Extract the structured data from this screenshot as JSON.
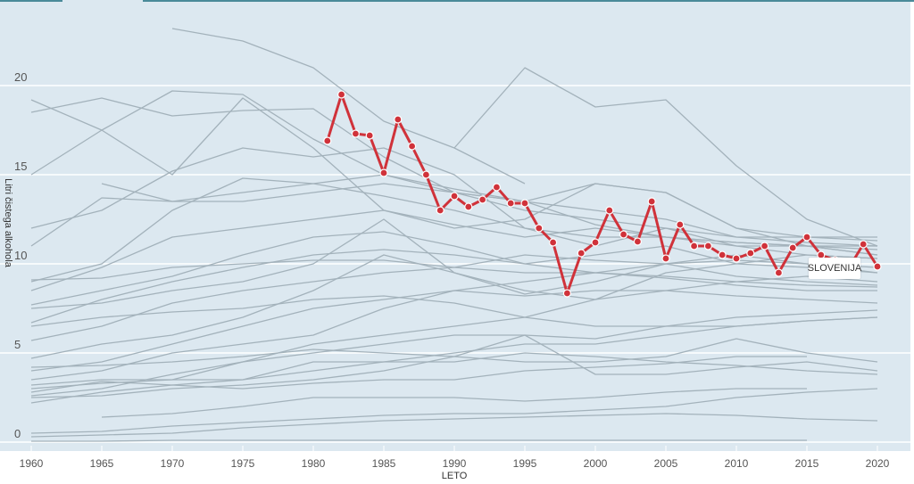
{
  "chart_data": {
    "type": "line",
    "title": "",
    "xlabel": "LETO",
    "ylabel": "Litri čistega alkohola",
    "xlim": [
      1960,
      2020
    ],
    "ylim": [
      0,
      24
    ],
    "x_ticks": [
      "1960",
      "1965",
      "1970",
      "1975",
      "1980",
      "1985",
      "1990",
      "1995",
      "2000",
      "2005",
      "2010",
      "2015",
      "2020"
    ],
    "y_ticks": [
      "0",
      "5",
      "10",
      "15",
      "20"
    ],
    "grid": "horizontal",
    "colors": {
      "background": "#dce8f0",
      "other_series": "#a3b2bb",
      "highlight": "#d0323a",
      "gridline": "#ffffff",
      "top_bar": "#4a8a99"
    },
    "highlight_series": {
      "name": "SLOVENIJA",
      "x": [
        1981,
        1982,
        1983,
        1984,
        1985,
        1986,
        1987,
        1988,
        1989,
        1990,
        1991,
        1992,
        1993,
        1994,
        1995,
        1996,
        1997,
        1998,
        1999,
        2000,
        2001,
        2002,
        2003,
        2004,
        2005,
        2006,
        2007,
        2008,
        2009,
        2010,
        2011,
        2012,
        2013,
        2014,
        2015,
        2016,
        2017,
        2018,
        2019,
        2020
      ],
      "values": [
        16.9,
        19.5,
        17.3,
        17.2,
        15.1,
        18.1,
        16.6,
        15.0,
        13.0,
        13.8,
        13.2,
        13.6,
        14.3,
        13.4,
        13.4,
        12.0,
        11.2,
        8.35,
        10.6,
        11.2,
        13.0,
        11.65,
        11.25,
        13.5,
        10.3,
        12.2,
        11.0,
        11.0,
        10.5,
        10.3,
        10.6,
        11.0,
        9.5,
        10.9,
        11.5,
        10.5,
        10.2,
        9.8,
        11.1,
        9.85
      ]
    },
    "other_series_x": [
      1960,
      1965,
      1970,
      1975,
      1980,
      1985,
      1990,
      1995,
      2000,
      2005,
      2010,
      2015,
      2020
    ],
    "other_series": [
      [
        null,
        null,
        23.2,
        22.5,
        21.0,
        18.0,
        16.5,
        14.5,
        null,
        null,
        null,
        null,
        null
      ],
      [
        null,
        null,
        null,
        null,
        null,
        null,
        16.5,
        21.0,
        18.8,
        19.2,
        15.5,
        12.5,
        11.0
      ],
      [
        19.2,
        17.5,
        19.7,
        19.5,
        17.0,
        15.0,
        14.0,
        13.0,
        12.5,
        12.0,
        11.0,
        11.0,
        11.0
      ],
      [
        18.5,
        19.3,
        18.3,
        18.6,
        18.7,
        16.0,
        14.0,
        13.5,
        13.0,
        12.5,
        11.5,
        11.2,
        11.0
      ],
      [
        15.0,
        17.5,
        15.0,
        19.3,
        16.5,
        13.0,
        12.0,
        12.5,
        14.5,
        14.0,
        12.0,
        11.5,
        11.3
      ],
      [
        12.0,
        13.0,
        15.2,
        16.5,
        16.0,
        16.5,
        15.0,
        12.0,
        11.5,
        11.5,
        11.0,
        10.5,
        10.3
      ],
      [
        11.0,
        13.7,
        13.5,
        13.5,
        14.0,
        14.5,
        14.0,
        13.5,
        14.5,
        14.0,
        12.0,
        11.0,
        10.8
      ],
      [
        9.0,
        10.0,
        13.0,
        14.8,
        14.5,
        13.8,
        13.0,
        12.0,
        11.0,
        12.0,
        11.5,
        11.5,
        11.5
      ],
      [
        8.5,
        9.8,
        11.5,
        12.0,
        12.5,
        13.0,
        12.2,
        11.5,
        12.0,
        11.5,
        11.2,
        11.0,
        10.5
      ],
      [
        7.7,
        8.5,
        9.3,
        10.5,
        11.5,
        11.8,
        11.0,
        10.0,
        10.5,
        11.0,
        10.0,
        9.8,
        9.5
      ],
      [
        6.7,
        8.0,
        9.0,
        9.8,
        10.5,
        10.8,
        10.5,
        10.0,
        9.5,
        9.3,
        9.0,
        8.8,
        8.7
      ],
      [
        5.7,
        6.5,
        7.8,
        8.5,
        9.0,
        9.5,
        9.8,
        10.5,
        10.2,
        10.0,
        9.3,
        9.0,
        8.8
      ],
      [
        4.7,
        5.5,
        6.0,
        7.0,
        8.5,
        10.5,
        9.5,
        8.5,
        8.0,
        8.5,
        9.0,
        9.3,
        9.0
      ],
      [
        4.0,
        4.5,
        5.5,
        6.5,
        7.5,
        8.0,
        8.5,
        8.2,
        8.5,
        8.5,
        8.2,
        8.0,
        7.8
      ],
      [
        3.5,
        4.0,
        5.0,
        5.5,
        6.0,
        7.5,
        8.5,
        9.0,
        9.5,
        10.0,
        10.2,
        10.0,
        9.8
      ],
      [
        3.0,
        3.3,
        3.5,
        4.5,
        5.5,
        6.0,
        6.5,
        7.0,
        8.0,
        9.5,
        10.0,
        10.5,
        10.3
      ],
      [
        2.6,
        3.0,
        3.8,
        4.5,
        5.0,
        5.5,
        6.0,
        6.0,
        5.8,
        6.5,
        7.0,
        7.2,
        7.4
      ],
      [
        2.2,
        2.8,
        3.2,
        3.5,
        4.0,
        4.5,
        5.0,
        5.5,
        5.5,
        6.0,
        6.5,
        6.8,
        7.0
      ],
      [
        0.5,
        0.6,
        0.9,
        1.1,
        1.3,
        1.5,
        1.6,
        1.6,
        1.8,
        2.0,
        2.5,
        2.8,
        3.0
      ],
      [
        0.3,
        0.4,
        0.5,
        0.8,
        1.0,
        1.2,
        1.3,
        1.4,
        1.5,
        1.6,
        1.5,
        1.3,
        1.2
      ],
      [
        0.05,
        0.05,
        0.1,
        0.1,
        0.1,
        0.1,
        0.1,
        0.1,
        0.1,
        0.1,
        0.1,
        0.1,
        null
      ],
      [
        2.8,
        3.4,
        3.2,
        3.0,
        3.3,
        3.5,
        3.5,
        4.0,
        4.2,
        4.4,
        4.8,
        4.8,
        null
      ],
      [
        null,
        14.5,
        13.5,
        14.0,
        14.5,
        15.0,
        14.2,
        13.5,
        12.2,
        11.5,
        11.2,
        11.0,
        10.5
      ],
      [
        9.1,
        9.2,
        9.8,
        10.0,
        10.2,
        10.2,
        9.8,
        9.5,
        9.5,
        9.2,
        8.8,
        8.5,
        8.5
      ],
      [
        7.5,
        7.8,
        8.5,
        9.0,
        10.0,
        12.5,
        9.5,
        8.3,
        9.0,
        10.0,
        10.5,
        10.0,
        9.5
      ],
      [
        6.5,
        7.0,
        7.3,
        7.5,
        8.0,
        8.2,
        7.8,
        7.0,
        6.5,
        6.5,
        6.5,
        6.8,
        7.0
      ],
      [
        4.2,
        4.3,
        4.5,
        4.8,
        5.2,
        5.0,
        4.8,
        4.5,
        4.5,
        4.8,
        5.8,
        5.0,
        4.5
      ],
      [
        3.2,
        3.5,
        3.5,
        3.5,
        4.5,
        4.5,
        4.5,
        5.0,
        4.8,
        4.5,
        4.3,
        4.0,
        3.8
      ],
      [
        2.5,
        2.6,
        3.0,
        3.2,
        3.5,
        4.0,
        4.8,
        6.0,
        3.8,
        3.8,
        4.2,
        4.5,
        4.0
      ],
      [
        null,
        1.4,
        1.6,
        2.0,
        2.5,
        2.5,
        2.5,
        2.3,
        2.5,
        2.8,
        3.0,
        3.0,
        null
      ]
    ]
  }
}
